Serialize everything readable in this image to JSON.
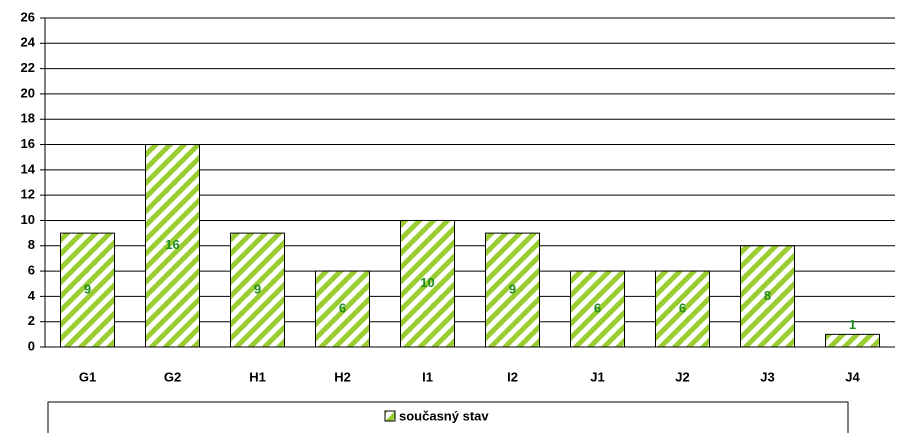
{
  "chart_data": {
    "type": "bar",
    "categories": [
      "G1",
      "G2",
      "H1",
      "H2",
      "I1",
      "I2",
      "J1",
      "J2",
      "J3",
      "J4"
    ],
    "series": [
      {
        "name": "současný stav",
        "color": "#9acd32",
        "label_color": "#1e8c1e",
        "values": [
          9,
          16,
          9,
          6,
          10,
          9,
          6,
          6,
          8,
          1
        ]
      }
    ],
    "ylim": [
      0,
      26
    ],
    "yticks": [
      0,
      2,
      4,
      6,
      8,
      10,
      12,
      14,
      16,
      18,
      20,
      22,
      24,
      26
    ],
    "grid": true,
    "legend": "bottom"
  }
}
